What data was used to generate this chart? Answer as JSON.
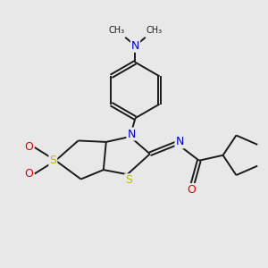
{
  "bg_color": "#e8e8e8",
  "bond_color": "#1a1a1a",
  "bond_width": 1.4,
  "atom_colors": {
    "N": "#0000cc",
    "S": "#bbbb00",
    "O": "#dd0000",
    "C": "#1a1a1a"
  },
  "font_size": 8.5,
  "figsize": [
    3.0,
    3.0
  ],
  "dpi": 100
}
